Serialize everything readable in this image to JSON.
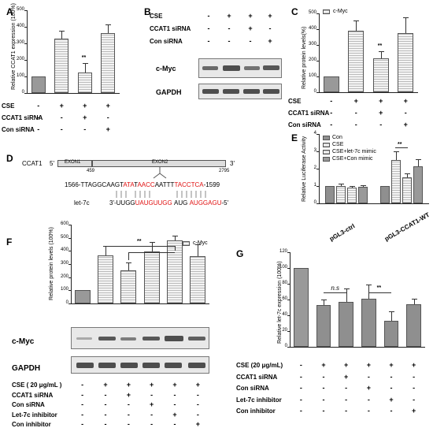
{
  "panels": {
    "A": {
      "label": "A",
      "ylabel": "Relative CCAT1 expression (100%)",
      "yticks": [
        "0",
        "100",
        "200",
        "300",
        "400",
        "500"
      ],
      "rows": [
        {
          "name": "CSE",
          "signs": [
            "-",
            "+",
            "+",
            "+"
          ]
        },
        {
          "name": "CCAT1 siRNA",
          "signs": [
            "-",
            "-",
            "+",
            "-"
          ]
        },
        {
          "name": "Con siRNA",
          "signs": [
            "-",
            "-",
            "-",
            "+"
          ]
        }
      ],
      "star": "**"
    },
    "B": {
      "label": "B",
      "rows": [
        {
          "name": "CSE",
          "signs": [
            "-",
            "+",
            "+",
            "+"
          ]
        },
        {
          "name": "CCAT1 siRNA",
          "signs": [
            "-",
            "-",
            "+",
            "-"
          ]
        },
        {
          "name": "Con siRNA",
          "signs": [
            "-",
            "-",
            "-",
            "+"
          ]
        }
      ],
      "blots": [
        "c-Myc",
        "GAPDH"
      ]
    },
    "C": {
      "label": "C",
      "ylabel": "Relative protein levels(%)",
      "yticks": [
        "0",
        "100",
        "200",
        "300",
        "400",
        "500"
      ],
      "legend": "c-Myc",
      "rows": [
        {
          "name": "CSE",
          "signs": [
            "-",
            "+",
            "+",
            "+"
          ]
        },
        {
          "name": "CCAT1 siRNA",
          "signs": [
            "-",
            "-",
            "+",
            "-"
          ]
        },
        {
          "name": "Con siRNA",
          "signs": [
            "-",
            "-",
            "-",
            "+"
          ]
        }
      ],
      "star": "**"
    },
    "D": {
      "label": "D",
      "gene": "CCAT1",
      "five": "5'",
      "three": "3'",
      "exon1": "EXON1",
      "exon2": "EXON2",
      "pos_start": "459",
      "pos_end": "2795",
      "target_prefix": "1566-TTAGGCAAGT",
      "target_r1": "ATA",
      "target_m1": "T",
      "target_r2": "AACC",
      "target_m2": "AATTT",
      "target_r3": "TACCTCA",
      "target_suffix": "-1599",
      "mirna_name": "let-7c",
      "mirna_prefix": "3'-UUGG",
      "mirna_r1": "UAU",
      "mirna_r2": "GUUGG",
      "mirna_m1": "AUG",
      "mirna_r3": "AUGGAGU",
      "mirna_suffix": "-5'"
    },
    "E": {
      "label": "E",
      "ylabel": "Relative Luciferase Activity",
      "yticks": [
        "0",
        "1",
        "2",
        "3",
        "4"
      ],
      "legend": [
        "Con",
        "CSE",
        "CSE+let-7c mimic",
        "CSE+Con mimic"
      ],
      "groups": [
        "pGL3-ctrl",
        "pGL3-CCAT1-WT"
      ],
      "star": "**"
    },
    "F": {
      "label": "F",
      "ylabel": "Relative protein levels (100%)",
      "yticks": [
        "0",
        "100",
        "200",
        "300",
        "400",
        "500",
        "600"
      ],
      "legend": "c-Myc",
      "blots": [
        "c-Myc",
        "GAPDH"
      ],
      "rows": [
        {
          "name": "CSE ( 20 μg/mL )",
          "signs": [
            "-",
            "+",
            "+",
            "+",
            "+",
            "+"
          ]
        },
        {
          "name": "CCAT1 siRNA",
          "signs": [
            "-",
            "-",
            "+",
            "-",
            "-",
            "-"
          ]
        },
        {
          "name": "Con siRNA",
          "signs": [
            "-",
            "-",
            "-",
            "+",
            "-",
            "-"
          ]
        },
        {
          "name": "Let-7c inhibitor",
          "signs": [
            "-",
            "-",
            "-",
            "-",
            "+",
            "-"
          ]
        },
        {
          "name": "Con inhibitor",
          "signs": [
            "-",
            "-",
            "-",
            "-",
            "-",
            "+"
          ]
        }
      ],
      "star": "**"
    },
    "G": {
      "label": "G",
      "ylabel": "Relative let-7c expression (100%)",
      "yticks": [
        "0",
        "20",
        "40",
        "60",
        "80",
        "100",
        "120"
      ],
      "rows": [
        {
          "name": "CSE  (20 μg/mL)",
          "signs": [
            "-",
            "+",
            "+",
            "+",
            "+",
            "+"
          ]
        },
        {
          "name": "CCAT1 siRNA",
          "signs": [
            "-",
            "-",
            "+",
            "-",
            "-",
            "-"
          ]
        },
        {
          "name": "Con siRNA",
          "signs": [
            "-",
            "-",
            "-",
            "+",
            "-",
            "-"
          ]
        },
        {
          "name": "Let-7c inhibitor",
          "signs": [
            "-",
            "-",
            "-",
            "-",
            "+",
            "-"
          ]
        },
        {
          "name": "Con inhibitor",
          "signs": [
            "-",
            "-",
            "-",
            "-",
            "-",
            "+"
          ]
        }
      ],
      "ns": "n.s",
      "star": "**"
    }
  },
  "chart_data": [
    {
      "type": "bar",
      "panel": "A",
      "categories": [
        "1",
        "2",
        "3",
        "4"
      ],
      "values": [
        100,
        330,
        125,
        360
      ],
      "errors": [
        0,
        45,
        55,
        55
      ],
      "ylim": [
        0,
        500
      ]
    },
    {
      "type": "bar",
      "panel": "C",
      "categories": [
        "1",
        "2",
        "3",
        "4"
      ],
      "series": [
        {
          "name": "c-Myc",
          "values": [
            100,
            390,
            215,
            375
          ]
        }
      ],
      "errors": [
        0,
        65,
        45,
        100
      ],
      "ylim": [
        0,
        500
      ]
    },
    {
      "type": "bar",
      "panel": "E",
      "categories": [
        "pGL3-ctrl",
        "pGL3-CCAT1-WT"
      ],
      "series": [
        {
          "name": "Con",
          "values": [
            1.0,
            1.0
          ]
        },
        {
          "name": "CSE",
          "values": [
            1.0,
            2.5
          ]
        },
        {
          "name": "CSE+let-7c mimic",
          "values": [
            0.9,
            1.5
          ]
        },
        {
          "name": "CSE+Con mimic",
          "values": [
            0.95,
            2.15
          ]
        }
      ],
      "ylim": [
        0,
        4
      ]
    },
    {
      "type": "bar",
      "panel": "F",
      "categories": [
        "1",
        "2",
        "3",
        "4",
        "5",
        "6"
      ],
      "series": [
        {
          "name": "c-Myc",
          "values": [
            100,
            365,
            255,
            395,
            480,
            360
          ]
        }
      ],
      "errors": [
        0,
        75,
        60,
        75,
        35,
        90
      ],
      "ylim": [
        0,
        600
      ]
    },
    {
      "type": "bar",
      "panel": "G",
      "categories": [
        "1",
        "2",
        "3",
        "4",
        "5",
        "6"
      ],
      "values": [
        100,
        53,
        57,
        61,
        33,
        54
      ],
      "errors": [
        0,
        7,
        17,
        18,
        12,
        7
      ],
      "ylim": [
        0,
        120
      ]
    }
  ]
}
